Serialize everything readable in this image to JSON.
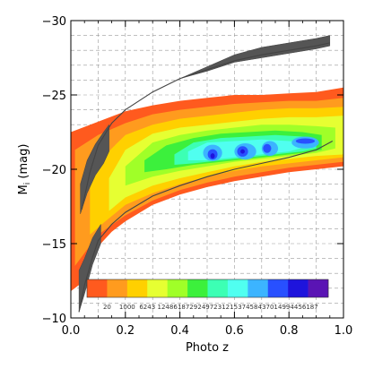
{
  "chart_data": {
    "type": "heatmap",
    "xlabel": "Photo z",
    "ylabel_main": "M",
    "ylabel_sub": "i",
    "ylabel_unit": " (mag)",
    "xlim": [
      0.0,
      1.0
    ],
    "ylim": [
      -10,
      -30
    ],
    "y_inverted": true,
    "grid": true,
    "x_ticks": [
      {
        "value": 0.0,
        "label": "0.0"
      },
      {
        "value": 0.2,
        "label": "0.2"
      },
      {
        "value": 0.4,
        "label": "0.4"
      },
      {
        "value": 0.6,
        "label": "0.6"
      },
      {
        "value": 0.8,
        "label": "0.8"
      },
      {
        "value": 1.0,
        "label": "1.0"
      }
    ],
    "y_ticks": [
      {
        "value": -30,
        "label": "−30"
      },
      {
        "value": -25,
        "label": "−25"
      },
      {
        "value": -20,
        "label": "−20"
      },
      {
        "value": -15,
        "label": "−15"
      },
      {
        "value": -10,
        "label": "−10"
      }
    ],
    "colorbar": {
      "colors": [
        "#ff5a1e",
        "#ff9b1e",
        "#ffd000",
        "#e6ff32",
        "#a0ff28",
        "#3cf03c",
        "#3cffb4",
        "#50fff0",
        "#3cb4ff",
        "#2850ff",
        "#1e14dc",
        "#5a14b4"
      ],
      "labels": [
        "20",
        "1000",
        "6243",
        "12486",
        "18729",
        "24972",
        "31215",
        "37458",
        "43701",
        "49944",
        "56187"
      ]
    },
    "density_layers": [
      {
        "level": 0,
        "upper": [
          [
            0.0,
            -22.5
          ],
          [
            0.1,
            -23.2
          ],
          [
            0.2,
            -23.9
          ],
          [
            0.3,
            -24.3
          ],
          [
            0.4,
            -24.6
          ],
          [
            0.5,
            -24.8
          ],
          [
            0.6,
            -25.0
          ],
          [
            0.7,
            -25.0
          ],
          [
            0.8,
            -25.1
          ],
          [
            0.9,
            -25.2
          ],
          [
            1.0,
            -25.5
          ]
        ],
        "lower": [
          [
            0.0,
            -11.8
          ],
          [
            0.05,
            -12.5
          ],
          [
            0.1,
            -14.8
          ],
          [
            0.15,
            -15.8
          ],
          [
            0.2,
            -16.5
          ],
          [
            0.3,
            -17.6
          ],
          [
            0.4,
            -18.3
          ],
          [
            0.5,
            -18.8
          ],
          [
            0.6,
            -19.2
          ],
          [
            0.7,
            -19.5
          ],
          [
            0.8,
            -19.8
          ],
          [
            0.9,
            -20.0
          ],
          [
            1.0,
            -20.2
          ]
        ]
      },
      {
        "level": 1,
        "upper": [
          [
            0.015,
            -21.3
          ],
          [
            0.1,
            -22.3
          ],
          [
            0.2,
            -23.1
          ],
          [
            0.3,
            -23.7
          ],
          [
            0.4,
            -24.0
          ],
          [
            0.5,
            -24.2
          ],
          [
            0.6,
            -24.4
          ],
          [
            0.7,
            -24.5
          ],
          [
            0.8,
            -24.6
          ],
          [
            0.9,
            -24.6
          ],
          [
            1.0,
            -24.8
          ]
        ],
        "lower": [
          [
            0.015,
            -13.5
          ],
          [
            0.1,
            -15.6
          ],
          [
            0.2,
            -16.9
          ],
          [
            0.3,
            -17.9
          ],
          [
            0.4,
            -18.6
          ],
          [
            0.5,
            -19.1
          ],
          [
            0.6,
            -19.5
          ],
          [
            0.7,
            -19.8
          ],
          [
            0.8,
            -20.1
          ],
          [
            0.9,
            -20.3
          ],
          [
            1.0,
            -20.5
          ]
        ]
      },
      {
        "level": 2,
        "upper": [
          [
            0.07,
            -19.8
          ],
          [
            0.15,
            -21.4
          ],
          [
            0.2,
            -22.3
          ],
          [
            0.3,
            -23.0
          ],
          [
            0.4,
            -23.4
          ],
          [
            0.5,
            -23.6
          ],
          [
            0.6,
            -23.8
          ],
          [
            0.7,
            -24.0
          ],
          [
            0.8,
            -24.1
          ],
          [
            0.9,
            -24.1
          ],
          [
            1.0,
            -24.2
          ]
        ],
        "lower": [
          [
            0.07,
            -15.6
          ],
          [
            0.12,
            -16.4
          ],
          [
            0.2,
            -17.6
          ],
          [
            0.3,
            -18.4
          ],
          [
            0.4,
            -19.0
          ],
          [
            0.5,
            -19.5
          ],
          [
            0.6,
            -19.9
          ],
          [
            0.7,
            -20.2
          ],
          [
            0.8,
            -20.4
          ],
          [
            0.9,
            -20.6
          ],
          [
            1.0,
            -20.8
          ]
        ]
      },
      {
        "level": 3,
        "upper": [
          [
            0.14,
            -19.4
          ],
          [
            0.2,
            -21.3
          ],
          [
            0.3,
            -22.4
          ],
          [
            0.4,
            -22.8
          ],
          [
            0.5,
            -23.0
          ],
          [
            0.6,
            -23.2
          ],
          [
            0.7,
            -23.4
          ],
          [
            0.8,
            -23.5
          ],
          [
            0.9,
            -23.5
          ],
          [
            1.0,
            -23.6
          ]
        ],
        "lower": [
          [
            0.14,
            -17.2
          ],
          [
            0.2,
            -18.1
          ],
          [
            0.3,
            -18.9
          ],
          [
            0.4,
            -19.4
          ],
          [
            0.5,
            -19.8
          ],
          [
            0.6,
            -20.2
          ],
          [
            0.7,
            -20.5
          ],
          [
            0.8,
            -20.7
          ],
          [
            0.9,
            -20.9
          ],
          [
            1.0,
            -21.0
          ]
        ]
      },
      {
        "level": 4,
        "upper": [
          [
            0.2,
            -20.2
          ],
          [
            0.3,
            -21.8
          ],
          [
            0.4,
            -22.3
          ],
          [
            0.5,
            -22.6
          ],
          [
            0.6,
            -22.8
          ],
          [
            0.7,
            -23.0
          ],
          [
            0.8,
            -23.0
          ],
          [
            0.9,
            -22.9
          ],
          [
            0.97,
            -22.8
          ]
        ],
        "lower": [
          [
            0.2,
            -18.9
          ],
          [
            0.3,
            -19.5
          ],
          [
            0.4,
            -19.9
          ],
          [
            0.5,
            -20.2
          ],
          [
            0.6,
            -20.5
          ],
          [
            0.7,
            -20.7
          ],
          [
            0.8,
            -20.9
          ],
          [
            0.9,
            -21.1
          ],
          [
            0.97,
            -21.4
          ]
        ]
      },
      {
        "level": 5,
        "upper": [
          [
            0.27,
            -20.6
          ],
          [
            0.35,
            -21.6
          ],
          [
            0.45,
            -22.1
          ],
          [
            0.55,
            -22.4
          ],
          [
            0.65,
            -22.5
          ],
          [
            0.75,
            -22.6
          ],
          [
            0.85,
            -22.5
          ],
          [
            0.92,
            -22.3
          ]
        ],
        "lower": [
          [
            0.27,
            -19.8
          ],
          [
            0.35,
            -20.0
          ],
          [
            0.45,
            -20.3
          ],
          [
            0.55,
            -20.5
          ],
          [
            0.65,
            -20.7
          ],
          [
            0.75,
            -20.9
          ],
          [
            0.85,
            -21.1
          ],
          [
            0.92,
            -21.3
          ]
        ]
      },
      {
        "level": 6,
        "upper": [
          [
            0.38,
            -21.0
          ],
          [
            0.45,
            -21.8
          ],
          [
            0.55,
            -22.1
          ],
          [
            0.65,
            -22.2
          ],
          [
            0.75,
            -22.3
          ],
          [
            0.85,
            -22.2
          ],
          [
            0.9,
            -22.0
          ]
        ],
        "lower": [
          [
            0.38,
            -20.3
          ],
          [
            0.45,
            -20.4
          ],
          [
            0.55,
            -20.6
          ],
          [
            0.65,
            -20.8
          ],
          [
            0.75,
            -21.0
          ],
          [
            0.85,
            -21.2
          ],
          [
            0.9,
            -21.4
          ]
        ]
      },
      {
        "level": 7,
        "upper": [
          [
            0.43,
            -21.2
          ],
          [
            0.5,
            -21.8
          ],
          [
            0.6,
            -21.9
          ],
          [
            0.7,
            -22.0
          ],
          [
            0.8,
            -21.9
          ],
          [
            0.86,
            -21.8
          ]
        ],
        "lower": [
          [
            0.43,
            -20.6
          ],
          [
            0.5,
            -20.6
          ],
          [
            0.6,
            -20.8
          ],
          [
            0.7,
            -21.0
          ],
          [
            0.8,
            -21.2
          ],
          [
            0.86,
            -21.5
          ]
        ]
      }
    ],
    "density_blobs": [
      {
        "level": 8,
        "cx": 0.52,
        "cy": -21.1,
        "rx": 0.035,
        "ry": 0.55
      },
      {
        "level": 8,
        "cx": 0.64,
        "cy": -21.2,
        "rx": 0.04,
        "ry": 0.55
      },
      {
        "level": 8,
        "cx": 0.73,
        "cy": -21.4,
        "rx": 0.03,
        "ry": 0.5
      },
      {
        "level": 8,
        "cx": 0.86,
        "cy": -21.8,
        "rx": 0.05,
        "ry": 0.4
      },
      {
        "level": 9,
        "cx": 0.52,
        "cy": -21.0,
        "rx": 0.018,
        "ry": 0.35
      },
      {
        "level": 9,
        "cx": 0.63,
        "cy": -21.2,
        "rx": 0.02,
        "ry": 0.35
      },
      {
        "level": 9,
        "cx": 0.72,
        "cy": -21.4,
        "rx": 0.015,
        "ry": 0.3
      },
      {
        "level": 9,
        "cx": 0.86,
        "cy": -21.9,
        "rx": 0.035,
        "ry": 0.18
      },
      {
        "level": 10,
        "cx": 0.52,
        "cy": -20.9,
        "rx": 0.008,
        "ry": 0.18
      },
      {
        "level": 10,
        "cx": 0.63,
        "cy": -21.2,
        "rx": 0.008,
        "ry": 0.15
      }
    ],
    "gray_bands": [
      {
        "upper": [
          [
            0.4,
            -26.1
          ],
          [
            0.5,
            -26.9
          ],
          [
            0.6,
            -27.7
          ],
          [
            0.7,
            -28.2
          ],
          [
            0.8,
            -28.5
          ],
          [
            0.9,
            -28.8
          ],
          [
            0.95,
            -29.0
          ]
        ],
        "lower": [
          [
            0.4,
            -26.1
          ],
          [
            0.5,
            -26.6
          ],
          [
            0.6,
            -27.2
          ],
          [
            0.7,
            -27.5
          ],
          [
            0.8,
            -27.8
          ],
          [
            0.9,
            -28.1
          ],
          [
            0.95,
            -28.3
          ]
        ]
      },
      {
        "upper": [
          [
            0.035,
            -19.0
          ],
          [
            0.06,
            -20.6
          ],
          [
            0.09,
            -21.7
          ],
          [
            0.12,
            -22.5
          ],
          [
            0.14,
            -23.0
          ]
        ],
        "lower": [
          [
            0.035,
            -17.0
          ],
          [
            0.06,
            -18.4
          ],
          [
            0.09,
            -19.6
          ],
          [
            0.12,
            -20.4
          ],
          [
            0.14,
            -21.2
          ]
        ]
      },
      {
        "upper": [
          [
            0.03,
            -13.2
          ],
          [
            0.05,
            -14.0
          ],
          [
            0.08,
            -15.4
          ],
          [
            0.11,
            -16.3
          ]
        ],
        "lower": [
          [
            0.03,
            -10.4
          ],
          [
            0.05,
            -11.6
          ],
          [
            0.08,
            -13.6
          ],
          [
            0.11,
            -15.0
          ]
        ]
      }
    ],
    "lines": [
      {
        "points": [
          [
            0.04,
            -17.3
          ],
          [
            0.07,
            -19.8
          ],
          [
            0.1,
            -21.6
          ],
          [
            0.15,
            -23.1
          ],
          [
            0.2,
            -24.0
          ],
          [
            0.3,
            -25.2
          ],
          [
            0.4,
            -26.1
          ],
          [
            0.5,
            -26.7
          ],
          [
            0.6,
            -27.3
          ],
          [
            0.7,
            -27.7
          ],
          [
            0.8,
            -28.0
          ],
          [
            0.9,
            -28.3
          ],
          [
            0.95,
            -28.5
          ]
        ]
      },
      {
        "points": [
          [
            0.03,
            -10.4
          ],
          [
            0.05,
            -12.2
          ],
          [
            0.08,
            -14.1
          ],
          [
            0.1,
            -15.2
          ],
          [
            0.15,
            -16.3
          ],
          [
            0.2,
            -17.1
          ],
          [
            0.3,
            -18.2
          ],
          [
            0.4,
            -18.9
          ],
          [
            0.5,
            -19.5
          ],
          [
            0.6,
            -20.0
          ],
          [
            0.7,
            -20.4
          ],
          [
            0.8,
            -20.8
          ],
          [
            0.9,
            -21.3
          ],
          [
            0.96,
            -21.9
          ]
        ]
      }
    ]
  }
}
